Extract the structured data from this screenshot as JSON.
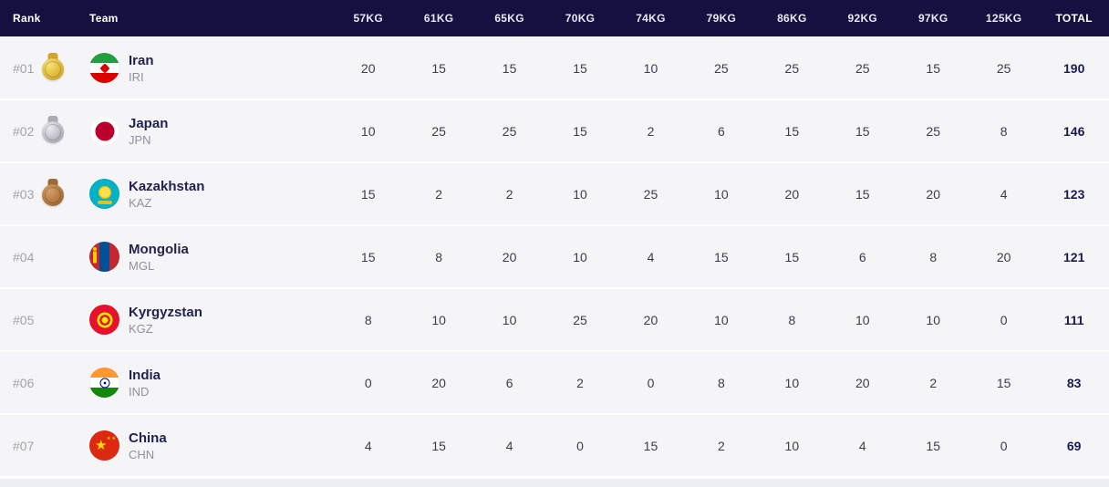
{
  "table": {
    "headers": {
      "rank": "Rank",
      "team": "Team",
      "total": "TOTAL"
    },
    "weight_classes": [
      "57KG",
      "61KG",
      "65KG",
      "70KG",
      "74KG",
      "79KG",
      "86KG",
      "92KG",
      "97KG",
      "125KG"
    ],
    "rows": [
      {
        "rank": "#01",
        "medal": "gold",
        "team": "Iran",
        "code": "IRI",
        "scores": [
          20,
          15,
          15,
          15,
          10,
          25,
          25,
          25,
          15,
          25
        ],
        "total": 190
      },
      {
        "rank": "#02",
        "medal": "silver",
        "team": "Japan",
        "code": "JPN",
        "scores": [
          10,
          25,
          25,
          15,
          2,
          6,
          15,
          15,
          25,
          8
        ],
        "total": 146
      },
      {
        "rank": "#03",
        "medal": "bronze",
        "team": "Kazakhstan",
        "code": "KAZ",
        "scores": [
          15,
          2,
          2,
          10,
          25,
          10,
          20,
          15,
          20,
          4
        ],
        "total": 123
      },
      {
        "rank": "#04",
        "medal": "none",
        "team": "Mongolia",
        "code": "MGL",
        "scores": [
          15,
          8,
          20,
          10,
          4,
          15,
          15,
          6,
          8,
          20
        ],
        "total": 121
      },
      {
        "rank": "#05",
        "medal": "none",
        "team": "Kyrgyzstan",
        "code": "KGZ",
        "scores": [
          8,
          10,
          10,
          25,
          20,
          10,
          8,
          10,
          10,
          0
        ],
        "total": 111
      },
      {
        "rank": "#06",
        "medal": "none",
        "team": "India",
        "code": "IND",
        "scores": [
          0,
          20,
          6,
          2,
          0,
          8,
          10,
          20,
          2,
          15
        ],
        "total": 83
      },
      {
        "rank": "#07",
        "medal": "none",
        "team": "China",
        "code": "CHN",
        "scores": [
          4,
          15,
          4,
          0,
          15,
          2,
          10,
          4,
          15,
          0
        ],
        "total": 69
      }
    ],
    "colors": {
      "header_bg": "#141040",
      "row_bg": "#f5f5f8",
      "team_text": "#20224f",
      "total_text": "#191b4d",
      "muted_text": "#8f90a0"
    }
  }
}
